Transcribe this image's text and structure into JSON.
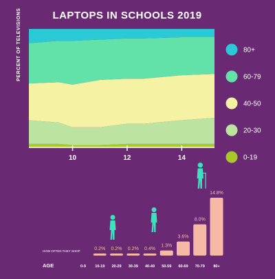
{
  "colors": {
    "background": "#6a2a73",
    "s80_plus": "#2bc9d6",
    "s60_79": "#62e2a9",
    "s40_50": "#f5f2a4",
    "s20_30": "#bde3a0",
    "s0_19": "#a9c92a",
    "bar": "#f6b9a6",
    "figure": "#3fe0bf",
    "text": "#ffffff"
  },
  "chart_data": [
    {
      "type": "area",
      "title": "LAPTOPS IN SCHOOLS 2019",
      "ylabel": "PERCENT OF TELEVISIONS",
      "xlabel": "",
      "x": [
        8.4,
        9.5,
        10,
        11,
        12,
        12.6,
        14,
        15.2
      ],
      "xticks": [
        10,
        12,
        14
      ],
      "xlim": [
        8.4,
        15.2
      ],
      "ylim": [
        0,
        100
      ],
      "stacked": true,
      "legend_position": "right",
      "series": [
        {
          "name": "0-19",
          "color_key": "s0_19",
          "values": [
            3,
            3,
            2,
            2,
            3,
            3,
            3,
            3
          ]
        },
        {
          "name": "20-30",
          "color_key": "s20_30",
          "values": [
            20,
            18,
            15,
            15,
            17,
            17,
            20,
            22
          ]
        },
        {
          "name": "40-50",
          "color_key": "s40_50",
          "values": [
            31,
            34,
            36,
            40,
            38,
            38,
            38,
            37
          ]
        },
        {
          "name": "60-79",
          "color_key": "s60_79",
          "values": [
            34,
            35,
            37,
            34,
            34,
            34,
            32,
            31
          ]
        },
        {
          "name": "80+",
          "color_key": "s80_plus",
          "values": [
            12,
            10,
            10,
            9,
            8,
            8,
            7,
            7
          ]
        }
      ]
    },
    {
      "type": "bar",
      "xlabel": "AGE",
      "row_label": "HOW OFTEN THEY SHOP",
      "categories": [
        "0-9",
        "10-19",
        "20-29",
        "30-39",
        "40-49",
        "50-59",
        "60-69",
        "70-79",
        "80+"
      ],
      "values": [
        null,
        0.2,
        0.2,
        0.2,
        0.4,
        1.3,
        3.6,
        8.0,
        14.8
      ],
      "labels": [
        "",
        "0.2%",
        "0.2%",
        "0.2%",
        "0.4%",
        "1.3%",
        "3.6%",
        "8.0%",
        "14.8%"
      ],
      "ylim": [
        0,
        14.8
      ]
    }
  ]
}
